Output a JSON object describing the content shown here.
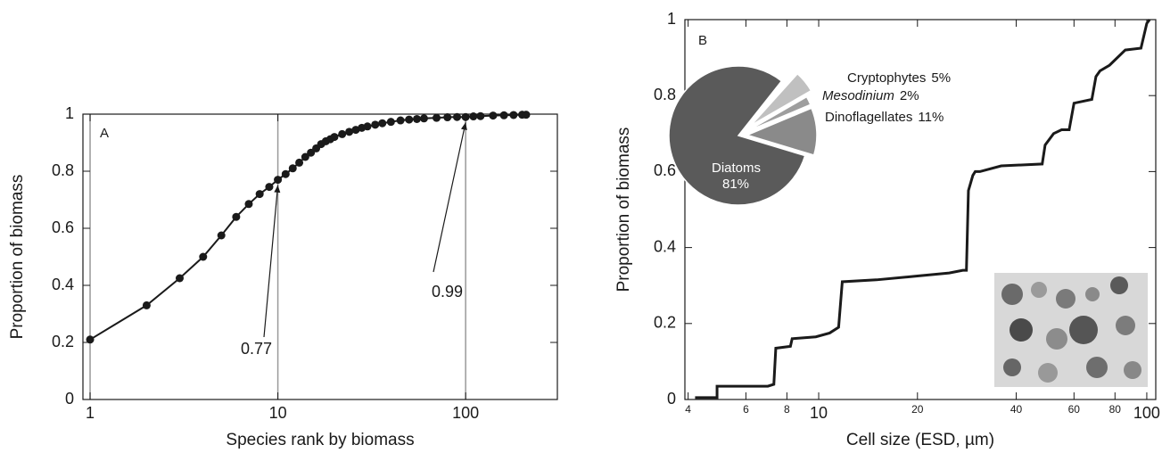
{
  "chart_data": [
    {
      "type": "line",
      "panel_label": "A",
      "x_label": "Species rank by biomass",
      "y_label": "Proportion of biomass",
      "x_scale": "log",
      "xlim": [
        0.916,
        308
      ],
      "xticks": [
        1,
        10,
        100
      ],
      "ylim": [
        0,
        1
      ],
      "yticks": [
        0,
        0.2,
        0.4,
        0.6,
        0.8,
        1
      ],
      "grid": true,
      "markers": true,
      "color": "#1a1a1a",
      "x": [
        1,
        2,
        3,
        4,
        5,
        6,
        7,
        8,
        9,
        10,
        11,
        12,
        13,
        14,
        15,
        16,
        17,
        18,
        19,
        20,
        22,
        24,
        26,
        28,
        30,
        33,
        36,
        40,
        45,
        50,
        55,
        60,
        70,
        80,
        90,
        100,
        110,
        120,
        140,
        160,
        180,
        200,
        210
      ],
      "values": [
        0.21,
        0.33,
        0.425,
        0.5,
        0.575,
        0.64,
        0.685,
        0.72,
        0.745,
        0.77,
        0.79,
        0.81,
        0.83,
        0.85,
        0.865,
        0.88,
        0.895,
        0.905,
        0.912,
        0.92,
        0.93,
        0.938,
        0.945,
        0.952,
        0.957,
        0.963,
        0.968,
        0.973,
        0.978,
        0.981,
        0.983,
        0.985,
        0.987,
        0.989,
        0.99,
        0.99,
        0.992,
        0.993,
        0.995,
        0.996,
        0.997,
        0.998,
        0.998
      ],
      "annotations": [
        {
          "text": "0.77",
          "x": 10,
          "y": 0.77
        },
        {
          "text": "0.99",
          "x": 100,
          "y": 0.99
        }
      ]
    },
    {
      "type": "line",
      "panel_label": "B",
      "x_label": "Cell size (ESD, µm)",
      "y_label": "Proportion of biomass",
      "x_scale": "log",
      "xlim": [
        3.91,
        106.5
      ],
      "xticks": [
        4,
        6,
        8,
        10,
        20,
        40,
        60,
        80,
        100
      ],
      "ylim": [
        0,
        1
      ],
      "yticks": [
        0,
        0.2,
        0.4,
        0.6,
        0.8,
        1
      ],
      "grid": false,
      "markers": false,
      "color": "#1a1a1a",
      "x": [
        4.2,
        4.9,
        4.9,
        7.0,
        7.3,
        7.4,
        8.2,
        8.3,
        9.8,
        10.8,
        11.5,
        11.8,
        15,
        20,
        25,
        27.5,
        28.2,
        28.6,
        29.5,
        30,
        31,
        36,
        48,
        49,
        52,
        55,
        58,
        60,
        68,
        70,
        72,
        77,
        86,
        96,
        100,
        102
      ],
      "values": [
        0.005,
        0.005,
        0.035,
        0.035,
        0.04,
        0.135,
        0.14,
        0.16,
        0.165,
        0.175,
        0.19,
        0.31,
        0.315,
        0.325,
        0.333,
        0.34,
        0.34,
        0.55,
        0.59,
        0.6,
        0.6,
        0.615,
        0.62,
        0.67,
        0.7,
        0.71,
        0.71,
        0.78,
        0.79,
        0.85,
        0.865,
        0.88,
        0.92,
        0.925,
        0.99,
        1.0
      ]
    },
    {
      "type": "pie",
      "categories": [
        "Diatoms",
        "Dinoflagellates",
        "Mesodinium",
        "Cryptophytes"
      ],
      "values": [
        81,
        11,
        2,
        5
      ],
      "value_labels": [
        "81%",
        "11%",
        "2%",
        "5%"
      ],
      "colors": [
        "#5a5a5a",
        "#8a8a8a",
        "#9e9e9e",
        "#c0c0c0"
      ]
    }
  ]
}
